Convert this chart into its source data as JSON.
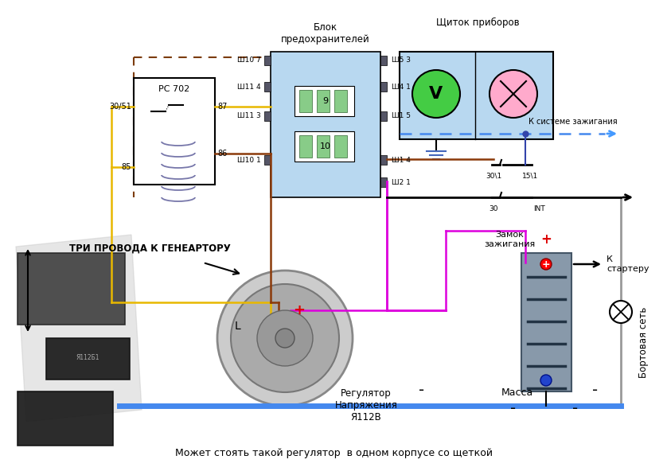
{
  "bg_color": "#ffffff",
  "text_blok": "Блок\nпредохранителей",
  "text_shitok": "Щиток приборов",
  "text_relay": "РС 702",
  "text_tri": "ТРИ ПРОВОДА К ГЕНЕАРТОРУ",
  "text_reg": "Регулятор\nНапряжения\nЯ112В",
  "text_massa": "Масса",
  "text_zamok": "Замок\nзажигания",
  "text_sistema": "К системе зажигания",
  "text_starter": "К\nстартеру",
  "text_bort": "Бортовая сеть",
  "text_mozhet": "Может стоять такой регулятор  в одном корпусе со щеткой",
  "text_INT": "INT",
  "text_30": "30",
  "text_301": "30\\1",
  "text_151": "15\\1",
  "text_L": "L",
  "colors": {
    "yellow": "#E8B800",
    "brown": "#8B3A0A",
    "magenta": "#DD00DD",
    "blue_dashed": "#5599FF",
    "blue_fill": "#B8D8F0",
    "blue_ground": "#4466BB",
    "green_circle": "#44CC44",
    "pink_circle": "#FFAACC",
    "gray_bat": "#8899AA",
    "dark_gray": "#444444",
    "red": "#DD0000",
    "black": "#000000",
    "dashed_brown": "#7B3B0A",
    "connector": "#555566",
    "light_blue_bar": "#6699CC"
  }
}
